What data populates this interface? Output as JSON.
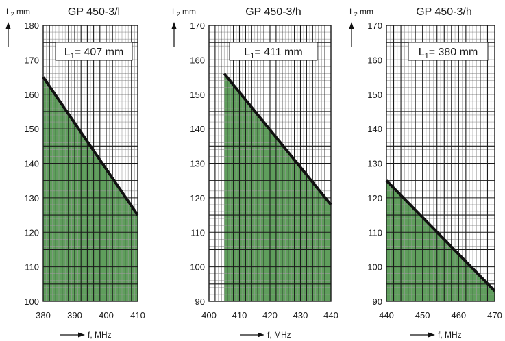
{
  "chart_data": [
    {
      "type": "area",
      "title": "GP 450-3/l",
      "annotation": {
        "main": "L",
        "sub": "1",
        "rest": "= 407 mm"
      },
      "ylabel": {
        "main": "L",
        "sub": "2",
        "rest": " mm"
      },
      "xlabel": "f, MHz",
      "xlim": [
        380,
        410
      ],
      "ylim": [
        100,
        180
      ],
      "xticks": [
        380,
        390,
        400,
        410
      ],
      "yticks": [
        100,
        110,
        120,
        130,
        140,
        150,
        160,
        170,
        180
      ],
      "series": [
        {
          "x": [
            380,
            410
          ],
          "values": [
            165,
            125
          ]
        }
      ],
      "fill_from_x": 380,
      "grid": true
    },
    {
      "type": "area",
      "title": "GP 450-3/h",
      "annotation": {
        "main": "L",
        "sub": "1",
        "rest": "= 411 mm"
      },
      "ylabel": {
        "main": "L",
        "sub": "2",
        "rest": " mm"
      },
      "xlabel": "f, MHz",
      "xlim": [
        400,
        440
      ],
      "ylim": [
        90,
        170
      ],
      "xticks": [
        400,
        410,
        420,
        430,
        440
      ],
      "yticks": [
        90,
        100,
        110,
        120,
        130,
        140,
        150,
        160,
        170
      ],
      "series": [
        {
          "x": [
            405,
            440
          ],
          "values": [
            156,
            118
          ]
        }
      ],
      "fill_from_x": 405,
      "grid": true
    },
    {
      "type": "area",
      "title": "GP 450-3/h",
      "annotation": {
        "main": "L",
        "sub": "1",
        "rest": "= 380 mm"
      },
      "ylabel": {
        "main": "L",
        "sub": "2",
        "rest": " mm"
      },
      "xlabel": "f, MHz",
      "xlim": [
        440,
        470
      ],
      "ylim": [
        90,
        170
      ],
      "xticks": [
        440,
        450,
        460,
        470
      ],
      "yticks": [
        90,
        100,
        110,
        120,
        130,
        140,
        150,
        160,
        170
      ],
      "series": [
        {
          "x": [
            440,
            470
          ],
          "values": [
            125,
            93
          ]
        }
      ],
      "fill_from_x": 440,
      "grid": true
    }
  ],
  "colors": {
    "fill": "#5f9e5c",
    "line": "#111111",
    "major_grid": "#1a1a1a",
    "minor_grid": "#9a9a9a",
    "text": "#1a1a1a"
  }
}
